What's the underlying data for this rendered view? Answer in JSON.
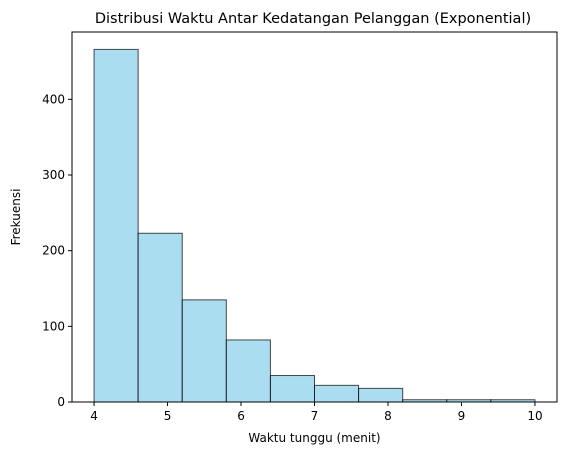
{
  "chart_data": {
    "type": "bar",
    "title": "Distribusi Waktu Antar Kedatangan Pelanggan (Exponential)",
    "xlabel": "Waktu tunggu (menit)",
    "ylabel": "Frekuensi",
    "bin_edges": [
      4.0,
      4.6,
      5.2,
      5.8,
      6.4,
      7.0,
      7.6,
      8.2,
      8.8,
      9.4,
      10.0
    ],
    "values": [
      466,
      223,
      135,
      82,
      35,
      22,
      18,
      3,
      3,
      3
    ],
    "xlim": [
      3.7,
      10.3
    ],
    "ylim": [
      0,
      489
    ],
    "xticks": [
      4,
      5,
      6,
      7,
      8,
      9,
      10
    ],
    "yticks": [
      0,
      100,
      200,
      300,
      400
    ],
    "grid": false,
    "bar_color": "#87CEEB",
    "edge_color": "#000000"
  }
}
